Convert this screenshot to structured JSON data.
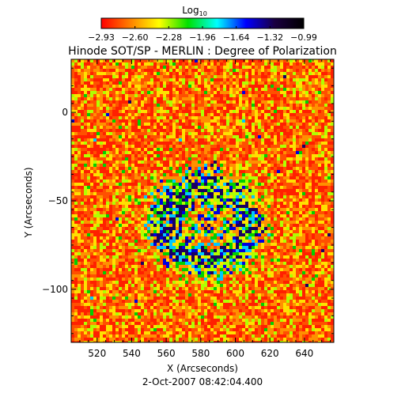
{
  "colorbar": {
    "label_main": "Log",
    "label_sub": "10",
    "ticks": [
      "-2.93",
      "-2.60",
      "-2.28",
      "-1.96",
      "-1.64",
      "-1.32",
      "-0.99"
    ],
    "range": [
      -2.93,
      -0.99
    ],
    "colors": [
      "#ff0000",
      "#ff8000",
      "#ffff00",
      "#00e000",
      "#00ffff",
      "#0000ff",
      "#1a0040",
      "#000000"
    ]
  },
  "chart_data": {
    "type": "heatmap",
    "title": "Hinode SOT/SP - MERLIN : Degree of Polarization",
    "xlabel": "X (Arcseconds)",
    "ylabel": "Y (Arcseconds)",
    "xlim": [
      505,
      657
    ],
    "ylim": [
      -130,
      30
    ],
    "x_ticks": [
      520,
      540,
      560,
      580,
      600,
      620,
      640
    ],
    "y_ticks": [
      0,
      -50,
      -100
    ],
    "value_range": [
      -2.93,
      -0.99
    ],
    "color_scale": "log10 degree of polarization (red low → black high)",
    "note_timestamp": "2-Oct-2007 08:42:04.400"
  },
  "footer": {
    "timestamp": "2-Oct-2007 08:42:04.400"
  }
}
